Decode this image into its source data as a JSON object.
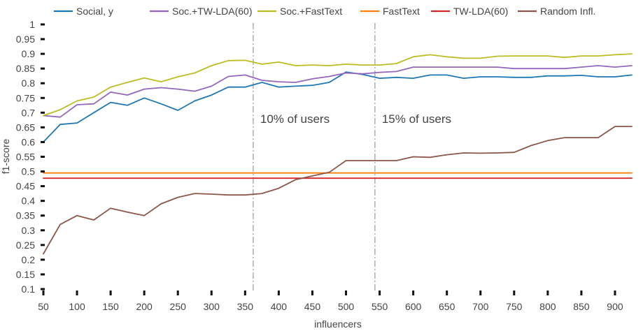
{
  "chart_data": {
    "type": "line",
    "xlabel": "influencers",
    "ylabel": "f1-score",
    "xlim": [
      50,
      925
    ],
    "ylim": [
      0.1,
      1.0
    ],
    "xticks": [
      50,
      100,
      150,
      200,
      250,
      300,
      350,
      400,
      450,
      500,
      550,
      600,
      650,
      700,
      750,
      800,
      850,
      900
    ],
    "yticks": [
      0.1,
      0.15,
      0.2,
      0.25,
      0.3,
      0.35,
      0.4,
      0.45,
      0.5,
      0.55,
      0.6,
      0.65,
      0.7,
      0.75,
      0.8,
      0.85,
      0.9,
      0.95,
      1
    ],
    "ytick_labels": [
      "0.1",
      "0.15",
      "0.2",
      "0.25",
      "0.3",
      "0.35",
      "0.4",
      "0.45",
      "0.5",
      "0.55",
      "0.6",
      "0.65",
      "0.7",
      "0.75",
      "0.8",
      "0.85",
      "0.9",
      "0.95",
      "1"
    ],
    "grid": false,
    "legend_position": "top",
    "x": [
      50,
      75,
      100,
      125,
      150,
      175,
      200,
      225,
      250,
      275,
      300,
      325,
      350,
      375,
      400,
      425,
      450,
      475,
      500,
      525,
      550,
      575,
      600,
      625,
      650,
      675,
      700,
      725,
      750,
      775,
      800,
      825,
      850,
      875,
      900,
      925
    ],
    "series": [
      {
        "name": "Social, y",
        "color": "#1f77b4",
        "values": [
          0.6,
          0.66,
          0.665,
          0.7,
          0.735,
          0.725,
          0.75,
          0.73,
          0.708,
          0.74,
          0.76,
          0.787,
          0.787,
          0.803,
          0.787,
          0.79,
          0.793,
          0.803,
          0.838,
          0.83,
          0.817,
          0.82,
          0.817,
          0.828,
          0.828,
          0.817,
          0.822,
          0.822,
          0.82,
          0.82,
          0.825,
          0.825,
          0.827,
          0.822,
          0.822,
          0.828
        ]
      },
      {
        "name": "Soc.+TW-LDA(60)",
        "color": "#9467bd",
        "values": [
          0.69,
          0.685,
          0.727,
          0.73,
          0.77,
          0.76,
          0.78,
          0.785,
          0.78,
          0.773,
          0.79,
          0.823,
          0.828,
          0.81,
          0.805,
          0.803,
          0.815,
          0.823,
          0.835,
          0.832,
          0.837,
          0.84,
          0.855,
          0.855,
          0.855,
          0.855,
          0.855,
          0.855,
          0.85,
          0.85,
          0.85,
          0.85,
          0.855,
          0.86,
          0.855,
          0.86
        ]
      },
      {
        "name": "Soc.+FastText",
        "color": "#bcbd22",
        "values": [
          0.69,
          0.71,
          0.74,
          0.753,
          0.787,
          0.803,
          0.818,
          0.805,
          0.822,
          0.835,
          0.86,
          0.877,
          0.878,
          0.865,
          0.872,
          0.86,
          0.862,
          0.86,
          0.865,
          0.862,
          0.862,
          0.867,
          0.89,
          0.897,
          0.89,
          0.885,
          0.885,
          0.892,
          0.893,
          0.893,
          0.893,
          0.888,
          0.893,
          0.893,
          0.897,
          0.9
        ]
      },
      {
        "name": "FastText",
        "color": "#ff7f0e",
        "values": [
          0.495,
          0.495,
          0.495,
          0.495,
          0.495,
          0.495,
          0.495,
          0.495,
          0.495,
          0.495,
          0.495,
          0.495,
          0.495,
          0.495,
          0.495,
          0.495,
          0.495,
          0.495,
          0.495,
          0.495,
          0.495,
          0.495,
          0.495,
          0.495,
          0.495,
          0.495,
          0.495,
          0.495,
          0.495,
          0.495,
          0.495,
          0.495,
          0.495,
          0.495,
          0.495,
          0.495
        ]
      },
      {
        "name": "TW-LDA(60)",
        "color": "#d62728",
        "values": [
          0.477,
          0.477,
          0.477,
          0.477,
          0.477,
          0.477,
          0.477,
          0.477,
          0.477,
          0.477,
          0.477,
          0.477,
          0.477,
          0.477,
          0.477,
          0.477,
          0.477,
          0.477,
          0.477,
          0.477,
          0.477,
          0.477,
          0.477,
          0.477,
          0.477,
          0.477,
          0.477,
          0.477,
          0.477,
          0.477,
          0.477,
          0.477,
          0.477,
          0.477,
          0.477,
          0.477
        ]
      },
      {
        "name": "Random Infl.",
        "color": "#8c564b",
        "values": [
          0.22,
          0.32,
          0.35,
          0.335,
          0.375,
          0.362,
          0.35,
          0.39,
          0.412,
          0.425,
          0.423,
          0.42,
          0.42,
          0.425,
          0.443,
          0.472,
          0.485,
          0.497,
          0.537,
          0.537,
          0.537,
          0.537,
          0.55,
          0.548,
          0.557,
          0.563,
          0.562,
          0.563,
          0.565,
          0.588,
          0.605,
          0.615,
          0.615,
          0.615,
          0.653,
          0.653
        ]
      }
    ],
    "annotations": [
      {
        "text": "10% of users",
        "x": 362
      },
      {
        "text": "15% of users",
        "x": 543
      }
    ],
    "annotation_line_color": "#b3b3b3"
  }
}
